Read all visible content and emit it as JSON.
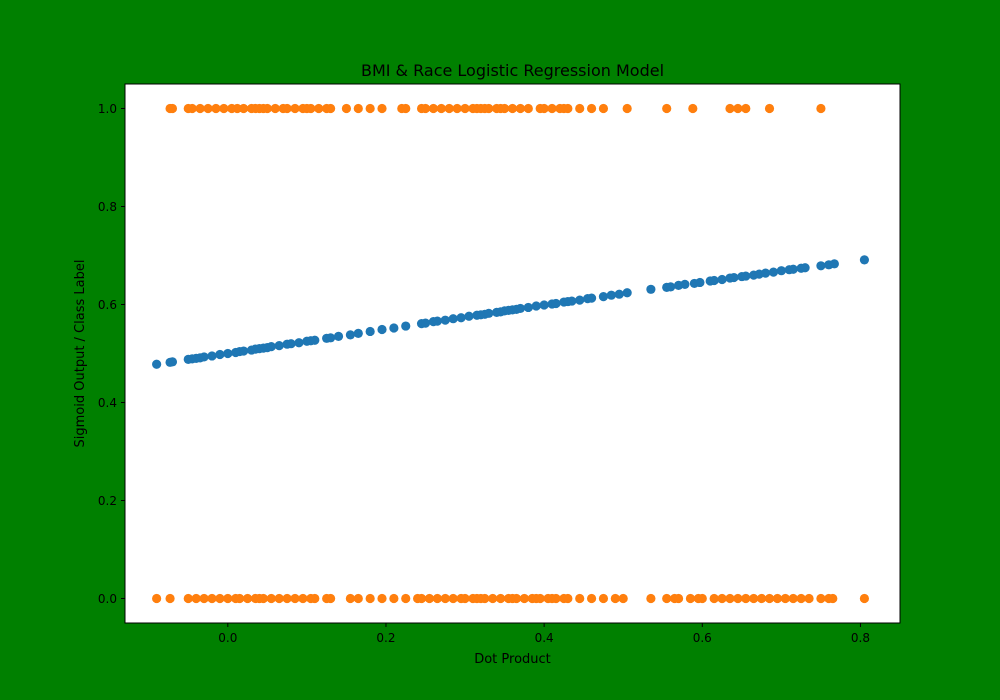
{
  "figure": {
    "background": "#008000"
  },
  "chart_data": {
    "type": "scatter",
    "title": "BMI & Race Logistic Regression Model",
    "xlabel": "Dot Product",
    "ylabel": "Sigmoid Output / Class Label",
    "xlim": [
      -0.13,
      0.85
    ],
    "ylim": [
      -0.05,
      1.05
    ],
    "xticks": [
      0.0,
      0.2,
      0.4,
      0.6,
      0.8
    ],
    "xtick_labels": [
      "0.0",
      "0.2",
      "0.4",
      "0.6",
      "0.8"
    ],
    "yticks": [
      0.0,
      0.2,
      0.4,
      0.6,
      0.8,
      1.0
    ],
    "ytick_labels": [
      "0.0",
      "0.2",
      "0.4",
      "0.6",
      "0.8",
      "1.0"
    ],
    "grid": false,
    "legend": "none",
    "series": [
      {
        "color": "#1f77b4",
        "x": [
          -0.09,
          -0.073,
          -0.07,
          -0.05,
          -0.045,
          -0.04,
          -0.035,
          -0.03,
          -0.02,
          -0.01,
          0.0,
          0.01,
          0.015,
          0.02,
          0.03,
          0.035,
          0.04,
          0.045,
          0.05,
          0.055,
          0.065,
          0.075,
          0.08,
          0.09,
          0.1,
          0.105,
          0.11,
          0.125,
          0.13,
          0.14,
          0.155,
          0.165,
          0.18,
          0.195,
          0.21,
          0.225,
          0.245,
          0.25,
          0.26,
          0.265,
          0.275,
          0.285,
          0.295,
          0.305,
          0.315,
          0.32,
          0.325,
          0.33,
          0.34,
          0.345,
          0.35,
          0.355,
          0.36,
          0.365,
          0.37,
          0.38,
          0.39,
          0.4,
          0.41,
          0.415,
          0.425,
          0.43,
          0.435,
          0.445,
          0.455,
          0.46,
          0.475,
          0.485,
          0.495,
          0.505,
          0.535,
          0.555,
          0.56,
          0.57,
          0.578,
          0.59,
          0.597,
          0.61,
          0.615,
          0.625,
          0.635,
          0.64,
          0.65,
          0.655,
          0.665,
          0.672,
          0.68,
          0.69,
          0.7,
          0.71,
          0.715,
          0.725,
          0.73,
          0.75,
          0.76,
          0.767,
          0.805
        ],
        "y": [
          0.478,
          0.482,
          0.483,
          0.488,
          0.489,
          0.49,
          0.491,
          0.493,
          0.495,
          0.498,
          0.5,
          0.502,
          0.504,
          0.505,
          0.507,
          0.509,
          0.51,
          0.511,
          0.512,
          0.514,
          0.516,
          0.519,
          0.52,
          0.522,
          0.525,
          0.526,
          0.527,
          0.531,
          0.532,
          0.535,
          0.538,
          0.541,
          0.545,
          0.549,
          0.552,
          0.556,
          0.561,
          0.562,
          0.565,
          0.566,
          0.568,
          0.571,
          0.573,
          0.576,
          0.578,
          0.579,
          0.58,
          0.582,
          0.584,
          0.585,
          0.587,
          0.588,
          0.589,
          0.59,
          0.592,
          0.594,
          0.597,
          0.599,
          0.601,
          0.602,
          0.605,
          0.606,
          0.607,
          0.609,
          0.612,
          0.613,
          0.616,
          0.619,
          0.621,
          0.624,
          0.631,
          0.635,
          0.636,
          0.639,
          0.641,
          0.643,
          0.645,
          0.648,
          0.649,
          0.651,
          0.654,
          0.655,
          0.657,
          0.658,
          0.66,
          0.662,
          0.664,
          0.666,
          0.669,
          0.671,
          0.672,
          0.674,
          0.675,
          0.679,
          0.681,
          0.683,
          0.691
        ]
      },
      {
        "color": "#ff7f0e",
        "x": [
          -0.073,
          -0.07,
          -0.05,
          -0.045,
          -0.035,
          -0.025,
          -0.015,
          -0.005,
          0.005,
          0.012,
          0.02,
          0.03,
          0.035,
          0.04,
          0.045,
          0.05,
          0.06,
          0.07,
          0.075,
          0.085,
          0.095,
          0.1,
          0.105,
          0.115,
          0.125,
          0.13,
          0.15,
          0.165,
          0.18,
          0.195,
          0.22,
          0.225,
          0.245,
          0.25,
          0.26,
          0.27,
          0.28,
          0.29,
          0.3,
          0.31,
          0.315,
          0.32,
          0.325,
          0.33,
          0.34,
          0.345,
          0.35,
          0.36,
          0.37,
          0.38,
          0.395,
          0.4,
          0.41,
          0.42,
          0.425,
          0.43,
          0.445,
          0.46,
          0.475,
          0.505,
          0.555,
          0.588,
          0.635,
          0.645,
          0.655,
          0.685,
          0.75
        ],
        "y": [
          1,
          1,
          1,
          1,
          1,
          1,
          1,
          1,
          1,
          1,
          1,
          1,
          1,
          1,
          1,
          1,
          1,
          1,
          1,
          1,
          1,
          1,
          1,
          1,
          1,
          1,
          1,
          1,
          1,
          1,
          1,
          1,
          1,
          1,
          1,
          1,
          1,
          1,
          1,
          1,
          1,
          1,
          1,
          1,
          1,
          1,
          1,
          1,
          1,
          1,
          1,
          1,
          1,
          1,
          1,
          1,
          1,
          1,
          1,
          1,
          1,
          1,
          1,
          1,
          1,
          1,
          1
        ]
      },
      {
        "color": "#ff7f0e",
        "x": [
          -0.09,
          -0.073,
          -0.05,
          -0.04,
          -0.03,
          -0.02,
          -0.01,
          0.0,
          0.01,
          0.015,
          0.025,
          0.035,
          0.04,
          0.045,
          0.055,
          0.065,
          0.075,
          0.085,
          0.095,
          0.105,
          0.11,
          0.125,
          0.13,
          0.155,
          0.165,
          0.18,
          0.195,
          0.21,
          0.225,
          0.24,
          0.245,
          0.255,
          0.265,
          0.275,
          0.285,
          0.295,
          0.3,
          0.31,
          0.315,
          0.32,
          0.325,
          0.335,
          0.345,
          0.355,
          0.36,
          0.365,
          0.375,
          0.385,
          0.39,
          0.395,
          0.405,
          0.41,
          0.415,
          0.425,
          0.43,
          0.445,
          0.46,
          0.475,
          0.49,
          0.5,
          0.535,
          0.555,
          0.565,
          0.57,
          0.585,
          0.595,
          0.6,
          0.615,
          0.625,
          0.635,
          0.645,
          0.655,
          0.665,
          0.675,
          0.685,
          0.695,
          0.705,
          0.715,
          0.725,
          0.735,
          0.75,
          0.76,
          0.765,
          0.805
        ],
        "y": [
          0,
          0,
          0,
          0,
          0,
          0,
          0,
          0,
          0,
          0,
          0,
          0,
          0,
          0,
          0,
          0,
          0,
          0,
          0,
          0,
          0,
          0,
          0,
          0,
          0,
          0,
          0,
          0,
          0,
          0,
          0,
          0,
          0,
          0,
          0,
          0,
          0,
          0,
          0,
          0,
          0,
          0,
          0,
          0,
          0,
          0,
          0,
          0,
          0,
          0,
          0,
          0,
          0,
          0,
          0,
          0,
          0,
          0,
          0,
          0,
          0,
          0,
          0,
          0,
          0,
          0,
          0,
          0,
          0,
          0,
          0,
          0,
          0,
          0,
          0,
          0,
          0,
          0,
          0,
          0,
          0,
          0,
          0,
          0
        ]
      }
    ]
  }
}
